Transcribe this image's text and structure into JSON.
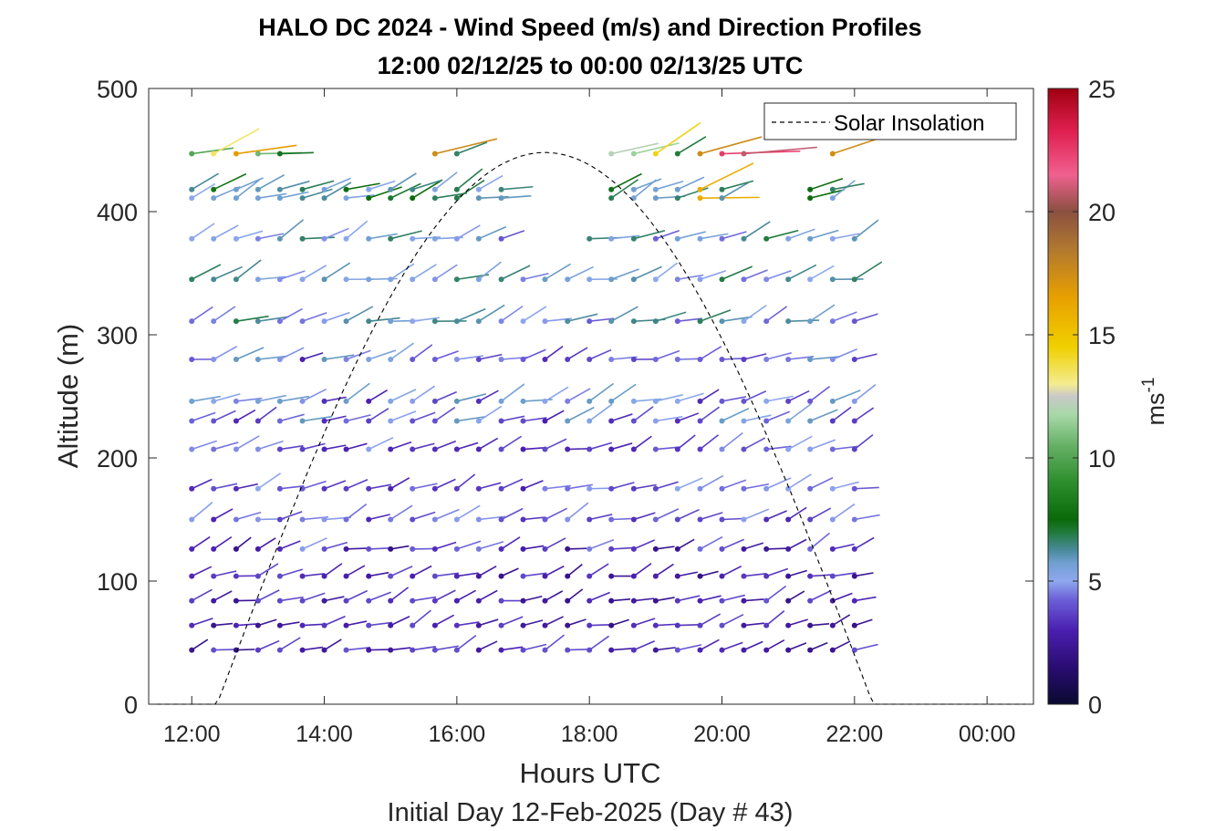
{
  "chart_data": {
    "type": "quiver",
    "title": "HALO DC 2024 - Wind Speed (m/s) and Direction Profiles",
    "subtitle": "12:00 02/12/25 to 00:00 02/13/25  UTC",
    "xlabel": "Hours UTC",
    "xlabel2": "Initial Day 12-Feb-2025 (Day # 43)",
    "ylabel": "Altitude (m)",
    "xlim": [
      11.35,
      24.7
    ],
    "ylim": [
      0,
      500
    ],
    "x_ticks": [
      12,
      14,
      16,
      18,
      20,
      22,
      24
    ],
    "x_tick_labels": [
      "12:00",
      "14:00",
      "16:00",
      "18:00",
      "20:00",
      "22:00",
      "00:00"
    ],
    "y_ticks": [
      0,
      100,
      200,
      300,
      400,
      500
    ],
    "y_tick_labels": [
      "0",
      "100",
      "200",
      "300",
      "400",
      "500"
    ],
    "colorbar": {
      "label": "ms",
      "label_superscript": "-1",
      "range": [
        0,
        25
      ],
      "ticks": [
        0,
        5,
        10,
        15,
        20,
        25
      ],
      "tick_labels": [
        "0",
        "5",
        "10",
        "15",
        "20",
        "25"
      ]
    },
    "legend": {
      "position": "top-right",
      "entries": [
        "Solar Insolation"
      ]
    },
    "solar_insolation": {
      "sunrise_hour": 12.38,
      "sunset_hour": 22.28,
      "peak_altitude": 448
    },
    "grid": false,
    "wind_speed_ms": {
      "altitudes_m": [
        44,
        64,
        84,
        104,
        126,
        150,
        175,
        207,
        230,
        246,
        280,
        311,
        345,
        378,
        411,
        418,
        447
      ],
      "times_h": [
        12.0,
        12.33,
        12.67,
        13.0,
        13.33,
        13.67,
        14.0,
        14.33,
        14.67,
        15.0,
        15.33,
        15.67,
        16.0,
        16.33,
        16.67,
        17.0,
        17.33,
        17.67,
        18.0,
        18.33,
        18.67,
        19.0,
        19.33,
        19.67,
        20.0,
        20.33,
        20.67,
        21.0,
        21.33,
        21.67,
        22.0
      ],
      "speed_range_by_level": [
        [
          2,
          4
        ],
        [
          2,
          4
        ],
        [
          2,
          4
        ],
        [
          2,
          4
        ],
        [
          2,
          5
        ],
        [
          3,
          5
        ],
        [
          3,
          5
        ],
        [
          3,
          5
        ],
        [
          3,
          6
        ],
        [
          3,
          6
        ],
        [
          3,
          6
        ],
        [
          4,
          7
        ],
        [
          4,
          7
        ],
        [
          4,
          7
        ],
        [
          5,
          8
        ],
        [
          5,
          8
        ],
        [
          4,
          18
        ]
      ],
      "typical_direction_deg": 250
    }
  }
}
